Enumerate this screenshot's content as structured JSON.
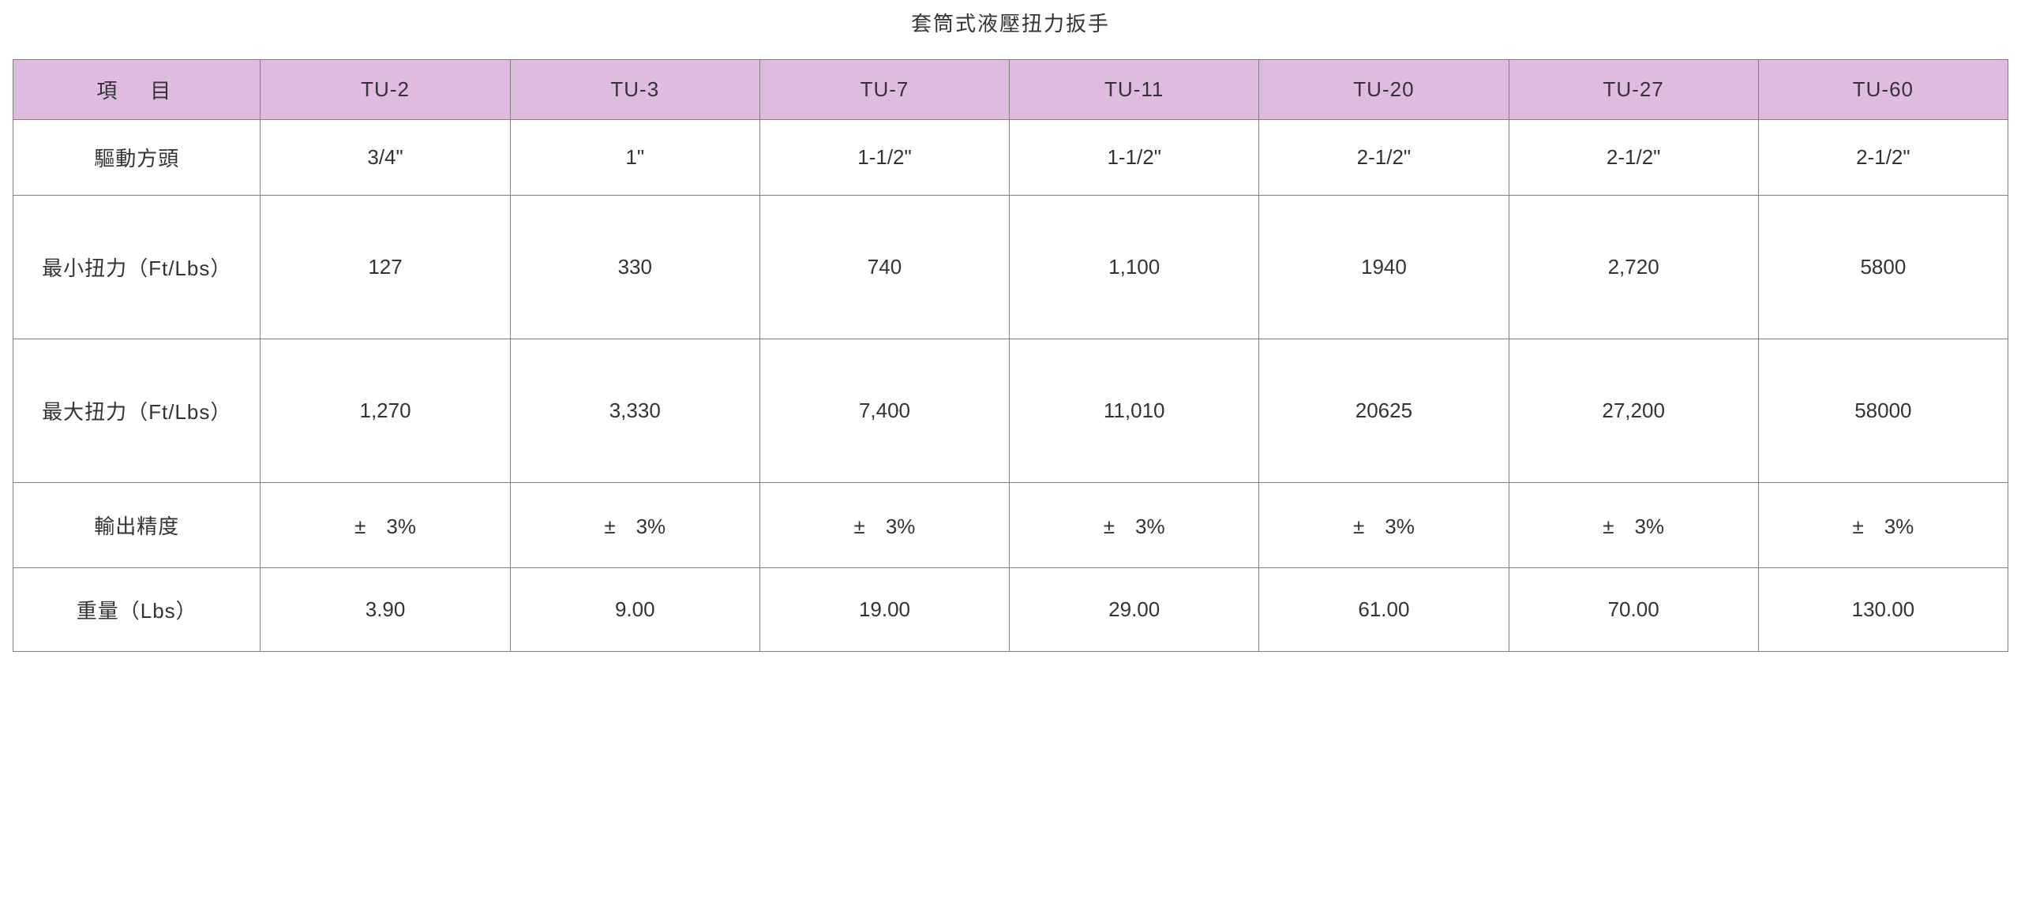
{
  "title": "套筒式液壓扭力扳手",
  "table": {
    "type": "table",
    "header_bg_color": "#e0bbe0",
    "border_color": "#808080",
    "text_color": "#333333",
    "background_color": "#ffffff",
    "font_size_pt": 20,
    "columns": [
      {
        "label": "項　目",
        "is_item_header": true
      },
      {
        "label": "TU-2"
      },
      {
        "label": "TU-3"
      },
      {
        "label": "TU-7"
      },
      {
        "label": "TU-11"
      },
      {
        "label": "TU-20"
      },
      {
        "label": "TU-27"
      },
      {
        "label": "TU-60"
      }
    ],
    "rows": [
      {
        "label": "驅動方頭",
        "height_class": "h-drive",
        "cells": [
          "3/4\"",
          "1\"",
          "1-1/2\"",
          "1-1/2\"",
          "2-1/2\"",
          "2-1/2\"",
          "2-1/2\""
        ]
      },
      {
        "label": "最小扭力（Ft/Lbs）",
        "height_class": "h-min",
        "cells": [
          "127",
          "330",
          "740",
          "1,100",
          "1940",
          "2,720",
          "5800"
        ]
      },
      {
        "label": "最大扭力（Ft/Lbs）",
        "height_class": "h-max",
        "cells": [
          "1,270",
          "3,330",
          "7,400",
          "11,010",
          "20625",
          "27,200",
          "58000"
        ]
      },
      {
        "label": "輸出精度",
        "height_class": "h-accuracy",
        "cells": [
          "±　3%",
          "±　3%",
          "±　3%",
          "±　3%",
          "±　3%",
          "±　3%",
          "±　3%"
        ]
      },
      {
        "label": "重量（Lbs）",
        "height_class": "h-weight",
        "cells": [
          "3.90",
          "9.00",
          "19.00",
          "29.00",
          "61.00",
          "70.00",
          "130.00"
        ]
      }
    ]
  }
}
